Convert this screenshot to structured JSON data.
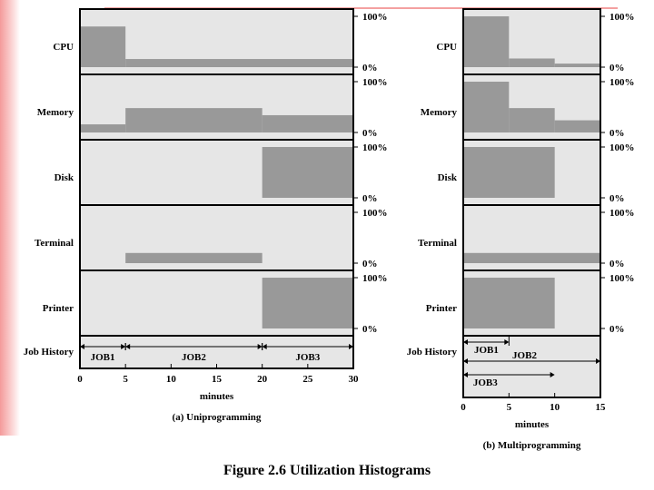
{
  "figure_caption": "Figure 2.6  Utilization Histograms",
  "colors": {
    "panel_bg": "#e6e6e6",
    "bar_fill": "#999999",
    "slide_accent": "#f08080"
  },
  "chart_data": [
    {
      "type": "histogram",
      "title": "(a) Uniprogramming",
      "xlabel": "minutes",
      "xlim": [
        0,
        30
      ],
      "x_ticks": [
        "0",
        "5",
        "10",
        "15",
        "20",
        "25",
        "30"
      ],
      "y_tick_labels": [
        "100%",
        "0%"
      ],
      "ylim": [
        0,
        100
      ],
      "resources": [
        {
          "name": "CPU",
          "segments": [
            {
              "x0": 0,
              "x1": 5,
              "value": 80
            },
            {
              "x0": 5,
              "x1": 30,
              "value": 16
            }
          ]
        },
        {
          "name": "Memory",
          "segments": [
            {
              "x0": 0,
              "x1": 5,
              "value": 16
            },
            {
              "x0": 5,
              "x1": 20,
              "value": 48
            },
            {
              "x0": 20,
              "x1": 30,
              "value": 34
            }
          ]
        },
        {
          "name": "Disk",
          "segments": [
            {
              "x0": 20,
              "x1": 30,
              "value": 100
            }
          ]
        },
        {
          "name": "Terminal",
          "segments": [
            {
              "x0": 5,
              "x1": 20,
              "value": 20
            }
          ]
        },
        {
          "name": "Printer",
          "segments": [
            {
              "x0": 20,
              "x1": 30,
              "value": 100
            }
          ]
        }
      ],
      "job_history_label": "Job History",
      "jobs": [
        {
          "name": "JOB1",
          "start": 0,
          "end": 5
        },
        {
          "name": "JOB2",
          "start": 5,
          "end": 20
        },
        {
          "name": "JOB3",
          "start": 20,
          "end": 30
        }
      ]
    },
    {
      "type": "histogram",
      "title": "(b) Multiprogramming",
      "xlabel": "minutes",
      "xlim": [
        0,
        15
      ],
      "x_ticks": [
        "0",
        "5",
        "10",
        "15"
      ],
      "y_tick_labels": [
        "100%",
        "0%"
      ],
      "ylim": [
        0,
        100
      ],
      "resources": [
        {
          "name": "CPU",
          "segments": [
            {
              "x0": 0,
              "x1": 5,
              "value": 100
            },
            {
              "x0": 5,
              "x1": 10,
              "value": 17
            },
            {
              "x0": 10,
              "x1": 15,
              "value": 7
            }
          ]
        },
        {
          "name": "Memory",
          "segments": [
            {
              "x0": 0,
              "x1": 5,
              "value": 100
            },
            {
              "x0": 5,
              "x1": 10,
              "value": 48
            },
            {
              "x0": 10,
              "x1": 15,
              "value": 24
            }
          ]
        },
        {
          "name": "Disk",
          "segments": [
            {
              "x0": 0,
              "x1": 10,
              "value": 100
            }
          ]
        },
        {
          "name": "Terminal",
          "segments": [
            {
              "x0": 0,
              "x1": 15,
              "value": 20
            }
          ]
        },
        {
          "name": "Printer",
          "segments": [
            {
              "x0": 0,
              "x1": 10,
              "value": 100
            }
          ]
        }
      ],
      "job_history_label": "Job History",
      "jobs": [
        {
          "name": "JOB1",
          "start": 0,
          "end": 5
        },
        {
          "name": "JOB2",
          "start": 0,
          "end": 15
        },
        {
          "name": "JOB3",
          "start": 0,
          "end": 10
        }
      ]
    }
  ]
}
